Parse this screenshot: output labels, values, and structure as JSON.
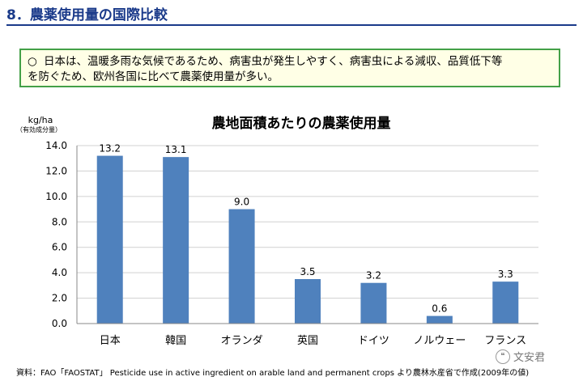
{
  "page": {
    "title": "8．農薬使用量の国際比較",
    "summary": [
      "日本は、温暖多雨な気候であるため、病害虫が発生しやすく、病害虫による減収、品質低下等",
      "を防ぐため、欧州各国に比べて農薬使用量が多い。"
    ],
    "summary_bullet": "○",
    "source": "資料：FAO「FAOSTAT」 Pesticide use in active ingredient on arable land and permanent crops  より農林水産省で作成(2009年の値)",
    "watermark": "文安君"
  },
  "chart_data": {
    "type": "bar",
    "title": "農地面積あたりの農薬使用量",
    "ylabel": "kg/ha",
    "ylabel_note": "（有効成分量）",
    "xlabel": "",
    "categories": [
      "日本",
      "韓国",
      "オランダ",
      "英国",
      "ドイツ",
      "ノルウェー",
      "フランス"
    ],
    "values": [
      13.2,
      13.1,
      9.0,
      3.5,
      3.2,
      0.6,
      3.3
    ],
    "value_labels": [
      "13.2",
      "13.1",
      "9.0",
      "3.5",
      "3.2",
      "0.6",
      "3.3"
    ],
    "yticks": [
      "0.0",
      "2.0",
      "4.0",
      "6.0",
      "8.0",
      "10.0",
      "12.0",
      "14.0"
    ],
    "ylim": [
      0,
      14
    ],
    "grid": true,
    "bar_color": "#4f81bd"
  }
}
